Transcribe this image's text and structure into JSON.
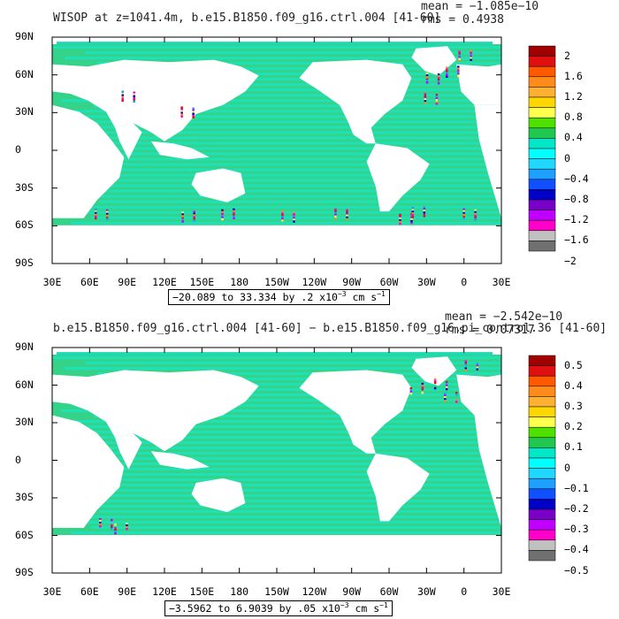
{
  "panels": [
    {
      "title": "WISOP at z=1041.4m, b.e15.B1850.f09_g16.ctrl.004 [41-60]",
      "mean_text": "mean = −1.085e−10",
      "rms_text": "rms = 0.4938",
      "range_text": "−20.089 to 33.334 by .2 x10",
      "range_exp": "−3",
      "range_units": " cm s",
      "range_units_exp": "−1",
      "colorbar_labels": [
        "2",
        "1.6",
        "1.2",
        "0.8",
        "0.4",
        "0",
        "−0.4",
        "−0.8",
        "−1.2",
        "−1.6",
        "−2"
      ]
    },
    {
      "title": "b.e15.B1850.f09_g16.ctrl.004 [41-60] − b.e15.B1850.f09_g16.pi_control.36 [41-60]",
      "mean_text": "mean = −2.542e−10",
      "rms_text": "rms = 0.07317",
      "range_text": "−3.5962 to 6.9039 by .05 x10",
      "range_exp": "−3",
      "range_units": " cm s",
      "range_units_exp": "−1",
      "colorbar_labels": [
        "0.5",
        "0.4",
        "0.3",
        "0.2",
        "0.1",
        "0",
        "−0.1",
        "−0.2",
        "−0.3",
        "−0.4",
        "−0.5"
      ]
    }
  ],
  "lat_labels": [
    "90N",
    "60N",
    "30N",
    "0",
    "30S",
    "60S",
    "90S"
  ],
  "lon_labels": [
    "30E",
    "60E",
    "90E",
    "120E",
    "150E",
    "180",
    "150W",
    "120W",
    "90W",
    "60W",
    "30W",
    "0",
    "30E"
  ],
  "colorbar_colors": [
    "#a00000",
    "#e01010",
    "#ff5a00",
    "#ff8c1a",
    "#ffb030",
    "#ffd700",
    "#ffff50",
    "#50e000",
    "#20c850",
    "#00e8c8",
    "#00ffff",
    "#20d8ff",
    "#1ea0ff",
    "#1050ff",
    "#0000c8",
    "#7800c8",
    "#c000ff",
    "#ff00c8",
    "#c0c0c0",
    "#707070"
  ]
}
